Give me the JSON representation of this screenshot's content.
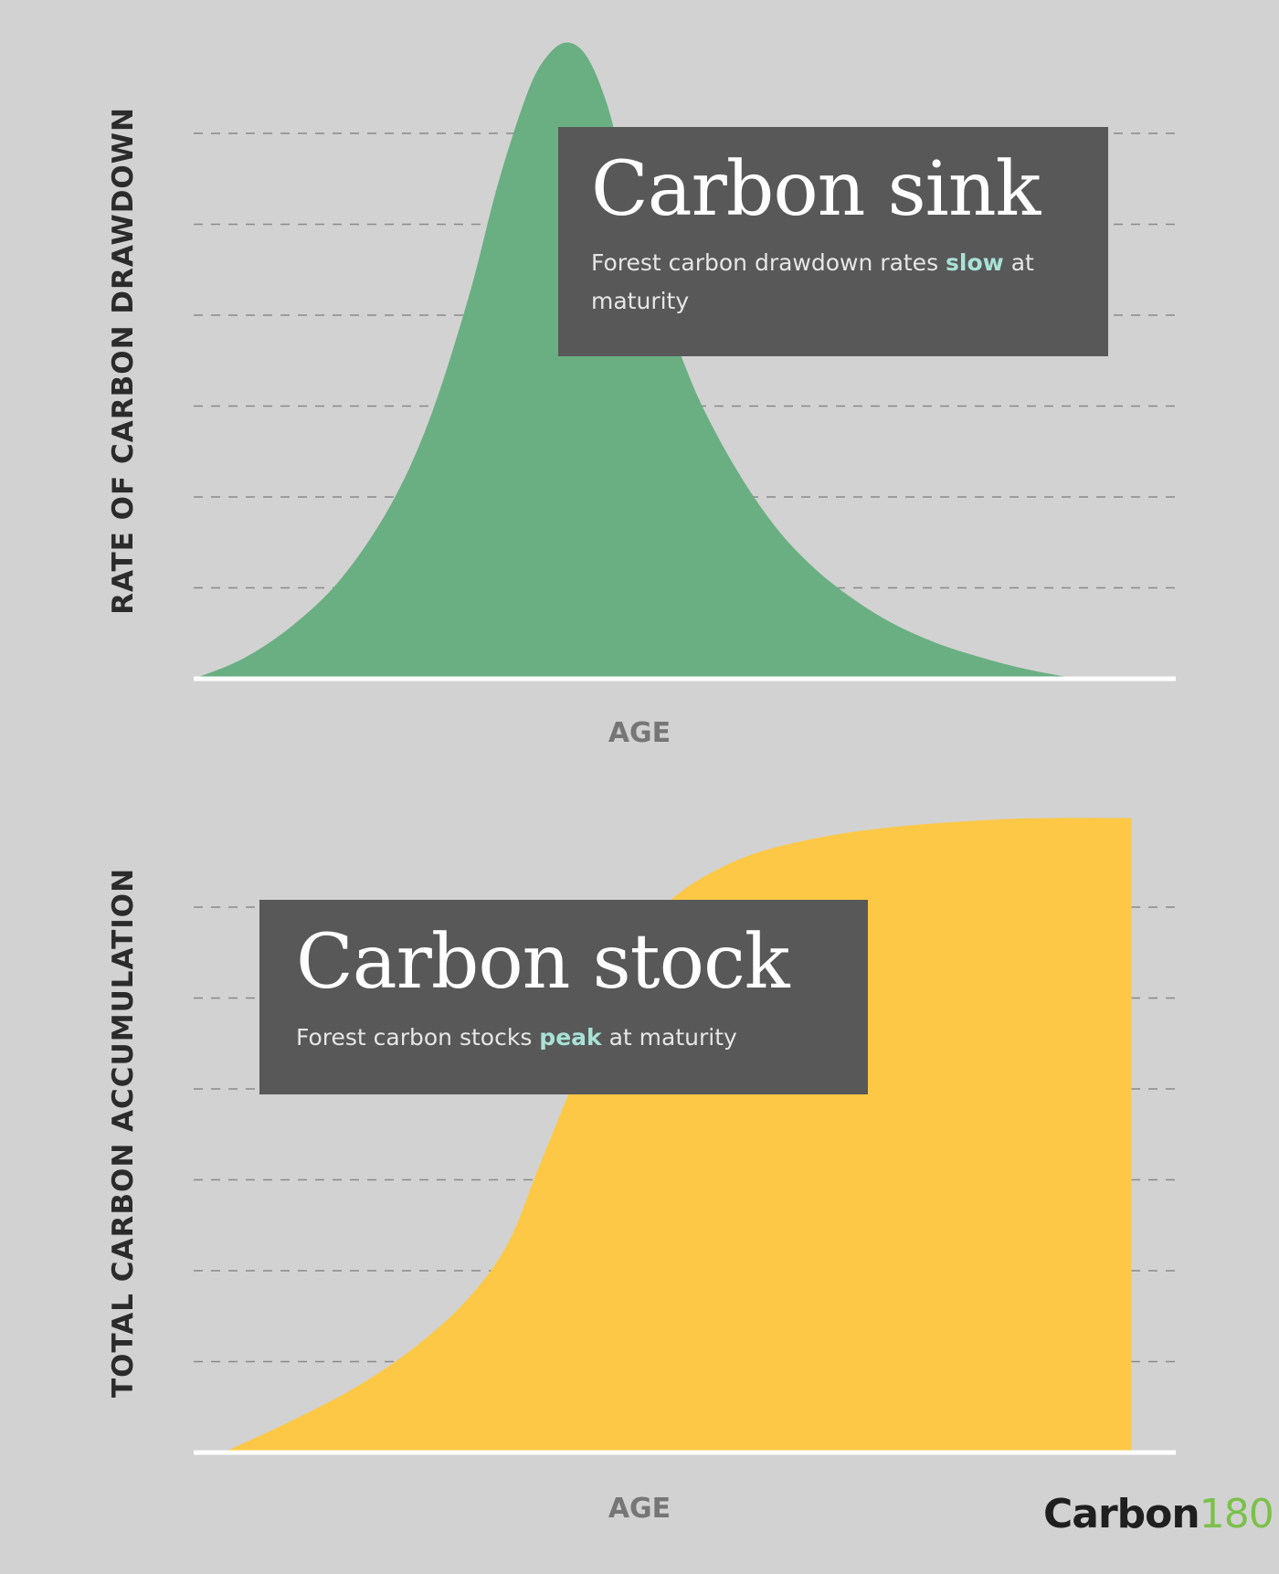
{
  "colors": {
    "background": "#d2d2d2",
    "sink_fill": "#6aaf82",
    "stock_fill": "#fdc845",
    "callout_bg": "#585858",
    "highlight": "#a9e1d6",
    "gridline": "#8a8a8a",
    "axis": "#ffffff",
    "logo_accent": "#7cc04b"
  },
  "chart_data": [
    {
      "type": "area",
      "ylabel": "RATE OF CARBON DRAWDOWN",
      "xlabel": "AGE",
      "xlim": [
        0,
        100
      ],
      "ylim": [
        0,
        7
      ],
      "grid": "dashed horizontal",
      "x": [
        0,
        5,
        10,
        15,
        20,
        24,
        28,
        31,
        34,
        36,
        38,
        40,
        42,
        44,
        46,
        48,
        50,
        52,
        55,
        58,
        61,
        65,
        70,
        75,
        80,
        85,
        90
      ],
      "values": [
        0,
        0.22,
        0.58,
        1.1,
        1.9,
        2.85,
        4.2,
        5.45,
        6.45,
        6.85,
        7.0,
        6.85,
        6.35,
        5.55,
        4.8,
        4.05,
        3.45,
        2.95,
        2.35,
        1.85,
        1.45,
        1.05,
        0.68,
        0.42,
        0.24,
        0.1,
        0.0
      ],
      "callout": {
        "title": "Carbon sink",
        "text_before": "Forest carbon drawdown rates ",
        "highlight": "slow",
        "text_after": " at maturity"
      }
    },
    {
      "type": "area",
      "ylabel": "TOTAL CARBON ACCUMULATION",
      "xlabel": "AGE",
      "xlim": [
        0,
        100
      ],
      "ylim": [
        0,
        7
      ],
      "grid": "dashed horizontal",
      "x": [
        3,
        10,
        17,
        23,
        28,
        32,
        35,
        38,
        41,
        44,
        47,
        50,
        54,
        58,
        63,
        68,
        73,
        78,
        83,
        88,
        92,
        95.5
      ],
      "values": [
        0,
        0.35,
        0.75,
        1.2,
        1.7,
        2.3,
        3.1,
        3.9,
        4.7,
        5.4,
        5.9,
        6.2,
        6.45,
        6.62,
        6.75,
        6.84,
        6.9,
        6.94,
        6.97,
        6.98,
        6.98,
        6.98
      ],
      "callout": {
        "title": "Carbon stock",
        "text_before": "Forest carbon stocks ",
        "highlight": "peak",
        "text_after": " at maturity"
      }
    }
  ],
  "logo": {
    "main": "Carbon",
    "num": "180"
  }
}
